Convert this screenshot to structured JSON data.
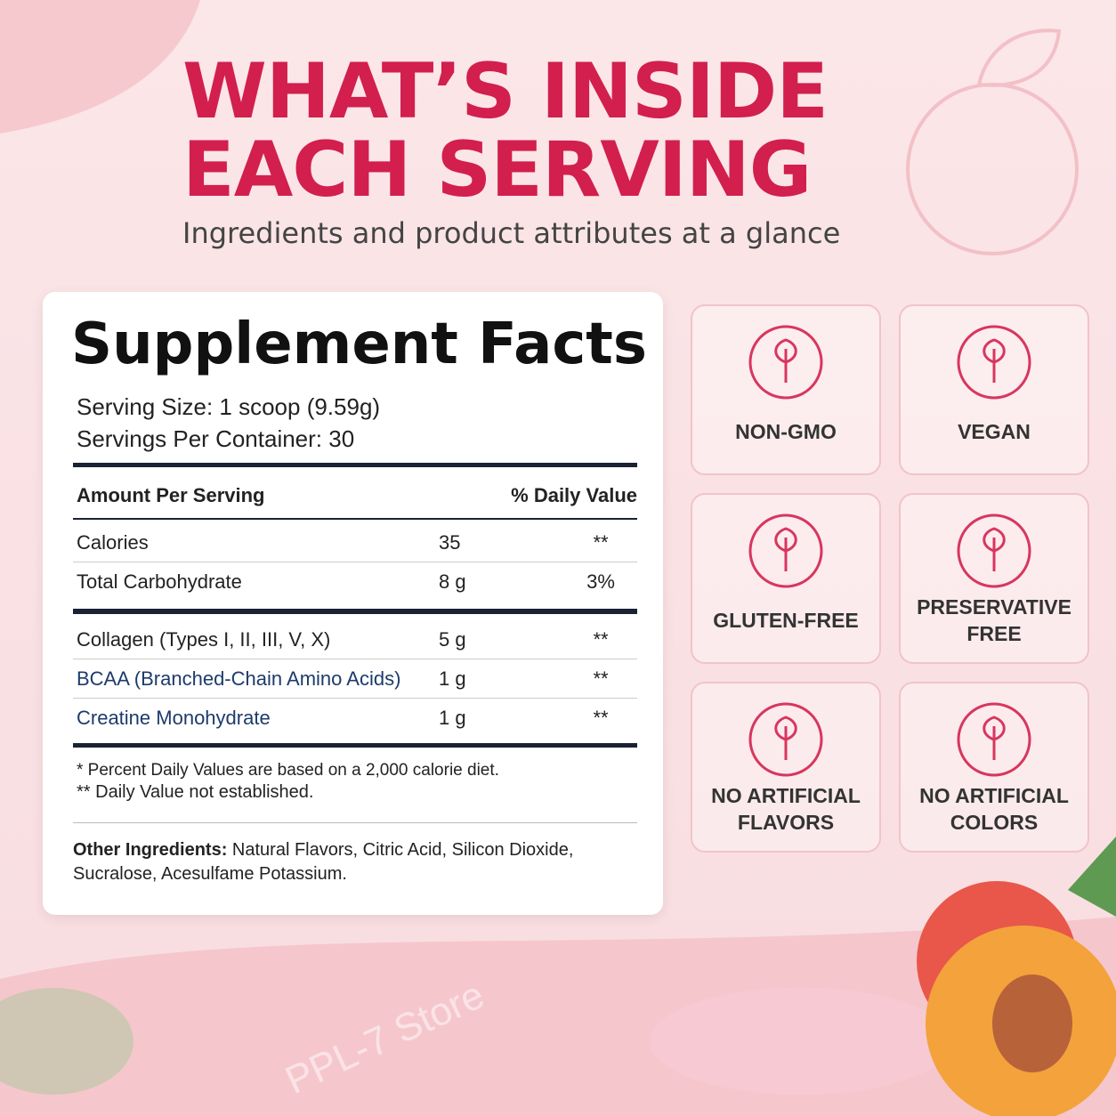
{
  "header": {
    "title_lines": [
      "WHAT’S INSIDE",
      "EACH SERVING"
    ],
    "subtitle": "Ingredients and product attributes at a glance"
  },
  "facts": {
    "title": "Supplement Facts",
    "serving_size": "Serving Size: 1 scoop (9.59g)",
    "servings_per_container": "Servings Per Container: 30",
    "columns": [
      "Amount Per Serving",
      "% Daily Value"
    ],
    "rows": [
      [
        "Calories",
        "35",
        "**"
      ],
      [
        "Total Carbohydrate",
        "8 g",
        "3%"
      ],
      [
        "Collagen (Types I, II, III, V, X)",
        "5 g",
        "**"
      ],
      [
        "BCAA (Branched-Chain Amino Acids)",
        "1 g",
        "**"
      ],
      [
        "Creatine Monohydrate",
        "1 g",
        "**"
      ]
    ],
    "footnotes": [
      "* Percent Daily Values are based on a 2,000 calorie diet.",
      "** Daily Value not established."
    ],
    "other_label": "Other Ingredients:",
    "other_text": "Natural Flavors, Citric Acid, Silicon Dioxide, Sucralose, Acesulfame Potassium."
  },
  "badges": [
    {
      "lines": [
        "NON-GMO"
      ]
    },
    {
      "lines": [
        "VEGAN"
      ]
    },
    {
      "lines": [
        "GLUTEN-FREE"
      ]
    },
    {
      "lines": [
        "PRESERVATIVE",
        "FREE"
      ]
    },
    {
      "lines": [
        "NO ARTIFICIAL",
        "FLAVORS"
      ]
    },
    {
      "lines": [
        "NO ARTIFICIAL",
        "COLORS"
      ]
    }
  ],
  "watermark": "PPL-7 Store"
}
